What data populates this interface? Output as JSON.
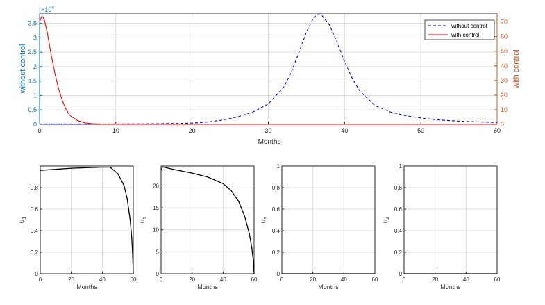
{
  "chart_data": [
    {
      "type": "line",
      "title": "",
      "xlabel": "Months",
      "ylabel_left": "without control",
      "ylabel_right": "with control",
      "xlim": [
        0,
        60
      ],
      "ylim_left": [
        0,
        38500
      ],
      "ylim_right": [
        0,
        76
      ],
      "x_ticks": [
        0,
        10,
        20,
        30,
        40,
        50,
        60
      ],
      "y_ticks_left": [
        0,
        0.5,
        1,
        1.5,
        2,
        2.5,
        3,
        3.5
      ],
      "y_ticks_right": [
        0,
        10,
        20,
        30,
        40,
        50,
        60,
        70
      ],
      "left_exponent_label": "×10",
      "left_exponent_power": "4",
      "grid": true,
      "legend_position": "top-right",
      "colors": {
        "left_axis": "#0072BD",
        "right_axis": "#D95319",
        "without_control": "#0000FF",
        "with_control": "#FF0000"
      },
      "series": [
        {
          "name": "without control",
          "axis": "left",
          "style": "dashed",
          "x": [
            0,
            5,
            10,
            15,
            20,
            22,
            24,
            26,
            28,
            30,
            32,
            33,
            34,
            35,
            36,
            36.5,
            37,
            38,
            39,
            40,
            41,
            42,
            44,
            46,
            48,
            50,
            52,
            55,
            58,
            60
          ],
          "y": [
            150,
            150,
            150,
            200,
            400,
            800,
            1500,
            2600,
            4300,
            7100,
            12800,
            18000,
            24800,
            32000,
            37200,
            38000,
            37800,
            34500,
            28500,
            21800,
            16000,
            11500,
            6500,
            4300,
            3000,
            2200,
            1600,
            1100,
            800,
            650
          ]
        },
        {
          "name": "with control",
          "axis": "right",
          "style": "solid",
          "x": [
            0,
            0.3,
            0.6,
            1,
            1.5,
            2,
            2.5,
            3,
            3.5,
            4,
            5,
            6,
            7,
            8,
            10,
            20,
            30,
            40,
            50,
            60
          ],
          "y": [
            70,
            74,
            72,
            63,
            48,
            35,
            24,
            16,
            10,
            6,
            2.5,
            1,
            0.4,
            0.2,
            0.1,
            0,
            0,
            0,
            0,
            0
          ]
        }
      ]
    },
    {
      "type": "line",
      "title": "",
      "xlabel": "Months",
      "ylabel": "u",
      "ylabel_sub": "1",
      "xlim": [
        0,
        60
      ],
      "ylim": [
        0,
        1
      ],
      "x_ticks": [
        0,
        20,
        40,
        60
      ],
      "y_ticks": [
        0,
        0.2,
        0.4,
        0.6,
        0.8
      ],
      "grid": true,
      "series": [
        {
          "x": [
            0,
            10,
            20,
            30,
            40,
            45,
            50,
            54,
            56,
            58,
            59,
            59.5,
            60
          ],
          "y": [
            0.96,
            0.97,
            0.98,
            0.985,
            0.99,
            0.99,
            0.93,
            0.82,
            0.7,
            0.5,
            0.33,
            0.2,
            0
          ]
        }
      ]
    },
    {
      "type": "line",
      "title": "",
      "xlabel": "Months",
      "ylabel": "u",
      "ylabel_sub": "2",
      "xlim": [
        0,
        60
      ],
      "ylim": [
        0,
        24.5
      ],
      "x_ticks": [
        0,
        20,
        40,
        60
      ],
      "y_ticks": [
        0,
        5,
        10,
        15,
        20
      ],
      "grid": true,
      "series": [
        {
          "x": [
            0,
            1,
            10,
            20,
            30,
            40,
            45,
            50,
            54,
            57,
            58.5,
            59.5,
            60
          ],
          "y": [
            23.5,
            24.3,
            23.6,
            22.9,
            22.0,
            20.5,
            19.0,
            16.5,
            13.0,
            9.0,
            6.0,
            3.0,
            0
          ]
        }
      ]
    },
    {
      "type": "line",
      "title": "",
      "xlabel": "Months",
      "ylabel": "u",
      "ylabel_sub": "3",
      "xlim": [
        0,
        60
      ],
      "ylim": [
        0,
        1
      ],
      "x_ticks": [
        0,
        20,
        40,
        60
      ],
      "y_ticks": [
        0,
        0.2,
        0.4,
        0.6,
        0.8,
        1
      ],
      "grid": true,
      "series": [
        {
          "x": [
            0,
            60
          ],
          "y": [
            0,
            0
          ]
        }
      ]
    },
    {
      "type": "line",
      "title": "",
      "xlabel": "Months",
      "ylabel": "u",
      "ylabel_sub": "4",
      "xlim": [
        0,
        60
      ],
      "ylim": [
        0,
        1
      ],
      "x_ticks": [
        0,
        20,
        40,
        60
      ],
      "y_ticks": [
        0,
        0.2,
        0.4,
        0.6,
        0.8,
        1
      ],
      "grid": true,
      "series": [
        {
          "x": [
            0,
            60
          ],
          "y": [
            0,
            0
          ]
        }
      ]
    }
  ]
}
